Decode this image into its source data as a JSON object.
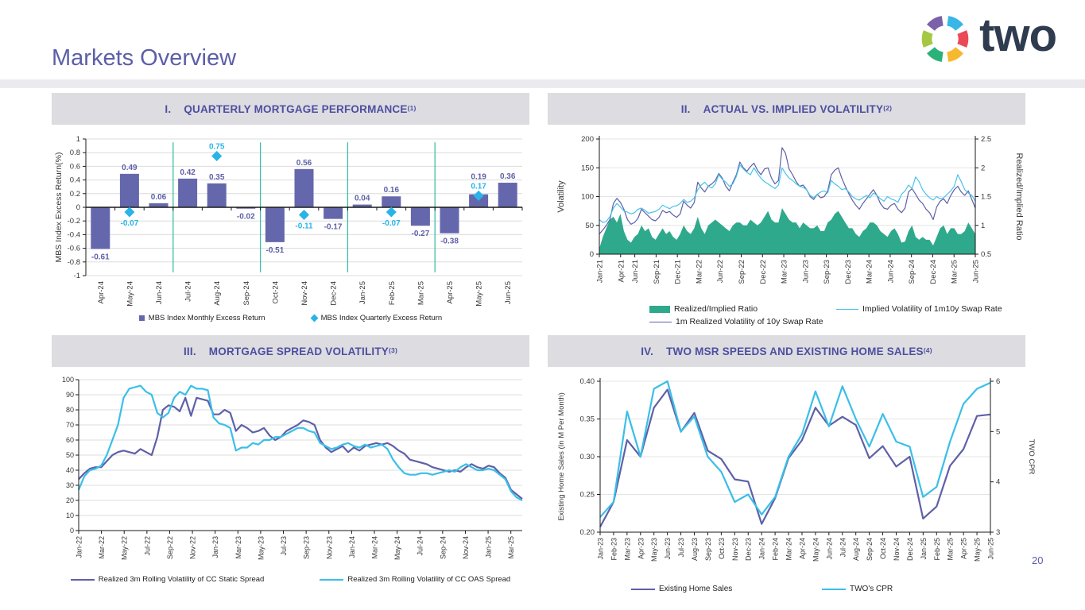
{
  "page": {
    "title": "Markets Overview",
    "page_number": "20",
    "logo": {
      "text": "two",
      "segment_colors": [
        "#7B61A9",
        "#38B6E8",
        "#EC4956",
        "#F5B82E",
        "#2BB279",
        "#A4C844"
      ]
    }
  },
  "colors": {
    "purple_series": "#5E60A8",
    "bar_fill": "#6567AC",
    "cyan_series": "#3ABFE8",
    "implied_cyan": "#49C3EA",
    "diamond_cyan": "#29B4E8",
    "green_area": "#2FA98B",
    "separator_teal": "#3EBEA8",
    "header_bg": "#DCDCE1",
    "header_text": "#4E4EA0",
    "grid": "#DCDCDC",
    "axis": "#1A1A1A",
    "tick_text": "#383838"
  },
  "panels": [
    {
      "numeral": "I.",
      "title": "QUARTERLY MORTGAGE PERFORMANCE",
      "footnote": "(1)"
    },
    {
      "numeral": "II.",
      "title": "ACTUAL VS. IMPLIED VOLATILITY",
      "footnote": "(2)"
    },
    {
      "numeral": "III.",
      "title": "MORTGAGE SPREAD VOLATILITY",
      "footnote": "(3)"
    },
    {
      "numeral": "IV.",
      "title": "TWO MSR SPEEDS AND EXISTING HOME SALES",
      "footnote": "(4)"
    }
  ],
  "chart_data": [
    {
      "type": "bar",
      "title": "Quarterly Mortgage Performance",
      "ylabel": "MBS Index  Excess Return(%)",
      "ylim": [
        -1,
        1
      ],
      "y_ticks": [
        "1",
        "0.8",
        "0.6",
        "0.4",
        "0.2",
        "0",
        "-0.2",
        "-0.4",
        "-0.6",
        "-0.8",
        "-1"
      ],
      "categories": [
        "Apr-24",
        "May-24",
        "Jun-24",
        "Jul-24",
        "Aug-24",
        "Sep-24",
        "Oct-24",
        "Nov-24",
        "Dec-24",
        "Jan-25",
        "Feb-25",
        "Mar-25",
        "Apr-25",
        "May-25",
        "Jun-25"
      ],
      "bar_series": {
        "name": "MBS Index Monthly Excess Return",
        "color": "#6567AC",
        "values": [
          -0.61,
          0.49,
          0.06,
          0.42,
          0.35,
          -0.02,
          -0.51,
          0.56,
          -0.17,
          0.04,
          0.16,
          -0.27,
          -0.38,
          0.19,
          0.36
        ],
        "labels": [
          "-0.61",
          "0.49",
          "0.06",
          "0.42",
          "0.35",
          "-0.02",
          "-0.51",
          "0.56",
          "-0.17",
          "0.04",
          "0.16",
          "-0.27",
          "-0.38",
          "0.19",
          "0.36"
        ]
      },
      "diamond_series": {
        "name": "MBS Index Quarterly Excess Return",
        "color": "#29B4E8",
        "points": [
          {
            "category": "May-24",
            "value": -0.07,
            "label": "-0.07"
          },
          {
            "category": "Aug-24",
            "value": 0.75,
            "label": "0.75"
          },
          {
            "category": "Nov-24",
            "value": -0.11,
            "label": "-0.11"
          },
          {
            "category": "Feb-25",
            "value": -0.07,
            "label": "-0.07"
          },
          {
            "category": "May-25",
            "value": 0.17,
            "label": "0.17"
          }
        ]
      },
      "quarter_separators_after": [
        "Jun-24",
        "Sep-24",
        "Dec-24",
        "Mar-25"
      ],
      "legend": [
        "MBS Index Monthly Excess Return",
        "MBS Index Quarterly Excess Return"
      ]
    },
    {
      "type": "line-area-dual-axis",
      "title": "Actual vs. Implied Volatility",
      "left_axis": {
        "label": "Volatility",
        "range": [
          0,
          200
        ],
        "ticks": [
          "0",
          "50",
          "100",
          "150",
          "200"
        ]
      },
      "right_axis": {
        "label": "Realized/Implied Ratio",
        "range": [
          0.5,
          2.5
        ],
        "ticks": [
          "0.5",
          "1",
          "1.5",
          "2",
          "2.5"
        ]
      },
      "x_months_total": 54,
      "x_tick_labels": [
        "Jan-21",
        "Apr-21",
        "Jun-21",
        "Sep-21",
        "Dec-21",
        "Mar-22",
        "Jun-22",
        "Sep-22",
        "Dec-22",
        "Mar-23",
        "Jun-23",
        "Sep-23",
        "Dec-23",
        "Mar-24",
        "Jun-24",
        "Sep-24",
        "Dec-24",
        "Mar-25",
        "Jun-25"
      ],
      "x_tick_pos": [
        0,
        3,
        5,
        8,
        11,
        14,
        17,
        20,
        23,
        26,
        29,
        32,
        35,
        38,
        41,
        44,
        47,
        50,
        53
      ],
      "series": [
        {
          "name": "Realized/Implied Ratio",
          "style": "area",
          "axis": "right",
          "color": "#2FA98B",
          "values": [
            0.6,
            0.8,
            0.95,
            1.1,
            1.15,
            1.05,
            1.2,
            0.9,
            0.75,
            0.7,
            0.8,
            0.85,
            1.0,
            0.9,
            0.95,
            0.8,
            0.75,
            0.85,
            0.95,
            0.85,
            0.9,
            0.8,
            0.75,
            0.85,
            1.0,
            0.9,
            0.85,
            0.95,
            1.15,
            0.95,
            0.85,
            1.0,
            1.05,
            1.1,
            1.05,
            1.0,
            0.95,
            0.9,
            1.0,
            1.05,
            1.05,
            1.0,
            1.0,
            1.1,
            1.05,
            1.0,
            1.05,
            1.15,
            1.25,
            1.1,
            1.05,
            1.05,
            1.3,
            1.2,
            1.1,
            1.05,
            1.05,
            0.95,
            1.05,
            1.0,
            0.95,
            0.95,
            1.0,
            0.9,
            0.9,
            1.05,
            1.1,
            1.2,
            1.25,
            1.15,
            1.05,
            0.95,
            0.95,
            0.85,
            0.8,
            0.9,
            0.95,
            1.05,
            1.05,
            1.0,
            0.9,
            0.85,
            0.8,
            0.9,
            0.95,
            0.85,
            0.7,
            0.72,
            0.9,
            1.0,
            0.8,
            0.75,
            0.8,
            0.75,
            0.75,
            0.65,
            0.8,
            0.95,
            1.0,
            0.85,
            0.95,
            0.95,
            0.85,
            0.85,
            0.9,
            1.05,
            0.95,
            0.85
          ]
        },
        {
          "name": "1m Realized Volatility of 10y Swap Rate",
          "style": "line",
          "axis": "left",
          "color": "#5E60A8",
          "values": [
            35,
            42,
            50,
            60,
            88,
            97,
            90,
            78,
            60,
            52,
            55,
            62,
            78,
            72,
            66,
            60,
            58,
            64,
            76,
            72,
            74,
            68,
            64,
            70,
            92,
            85,
            80,
            90,
            125,
            115,
            108,
            118,
            122,
            128,
            140,
            132,
            118,
            110,
            125,
            138,
            160,
            150,
            144,
            152,
            158,
            146,
            138,
            148,
            150,
            132,
            122,
            128,
            185,
            175,
            148,
            138,
            126,
            118,
            120,
            112,
            100,
            95,
            104,
            98,
            100,
            110,
            138,
            146,
            150,
            132,
            118,
            105,
            94,
            85,
            78,
            88,
            96,
            104,
            112,
            102,
            88,
            80,
            78,
            85,
            88,
            78,
            72,
            80,
            108,
            114,
            104,
            94,
            88,
            78,
            72,
            60,
            82,
            92,
            96,
            88,
            102,
            112,
            118,
            108,
            102,
            110,
            95,
            80
          ]
        },
        {
          "name": "Implied Volatility of 1m10y Swap Rate",
          "style": "line",
          "axis": "left",
          "color": "#49C3EA",
          "values": [
            60,
            55,
            57,
            65,
            80,
            88,
            82,
            75,
            73,
            70,
            72,
            78,
            80,
            76,
            71,
            73,
            74,
            78,
            85,
            82,
            79,
            83,
            84,
            88,
            95,
            90,
            92,
            98,
            112,
            120,
            125,
            118,
            115,
            122,
            138,
            130,
            125,
            118,
            122,
            135,
            155,
            148,
            142,
            138,
            150,
            140,
            132,
            126,
            122,
            118,
            114,
            120,
            150,
            140,
            132,
            128,
            122,
            118,
            116,
            112,
            102,
            98,
            104,
            108,
            110,
            106,
            128,
            122,
            118,
            112,
            114,
            108,
            100,
            96,
            94,
            98,
            102,
            98,
            106,
            102,
            96,
            92,
            100,
            96,
            94,
            90,
            104,
            110,
            120,
            114,
            134,
            126,
            112,
            104,
            98,
            94,
            100,
            96,
            98,
            104,
            110,
            118,
            138,
            126,
            112,
            106,
            102,
            92
          ]
        }
      ]
    },
    {
      "type": "line",
      "title": "Mortgage Spread Volatility",
      "y_axis": {
        "range": [
          0,
          100
        ],
        "ticks": [
          "0",
          "10",
          "20",
          "30",
          "40",
          "50",
          "60",
          "70",
          "80",
          "90",
          "100"
        ]
      },
      "x_months_total": 40,
      "x_tick_labels": [
        "Jan-22",
        "Mar-22",
        "May-22",
        "Jul-22",
        "Sep-22",
        "Nov-22",
        "Jan-23",
        "Mar-23",
        "May-23",
        "Jul-23",
        "Sep-23",
        "Nov-23",
        "Jan-24",
        "Mar-24",
        "May-24",
        "Jul-24",
        "Sep-24",
        "Nov-24",
        "Jan-25",
        "Mar-25"
      ],
      "x_tick_pos": [
        0,
        2,
        4,
        6,
        8,
        10,
        12,
        14,
        16,
        18,
        20,
        22,
        24,
        26,
        28,
        30,
        32,
        34,
        36,
        38
      ],
      "series": [
        {
          "name": "Realized 3m Rolling Volatility of CC Static Spread",
          "color": "#5E60A8",
          "values": [
            34,
            38,
            41,
            42,
            42,
            46,
            50,
            52,
            53,
            52,
            51,
            54,
            52,
            50,
            62,
            80,
            83,
            82,
            79,
            88,
            76,
            88,
            87,
            86,
            77,
            77,
            80,
            78,
            66,
            70,
            68,
            65,
            66,
            68,
            63,
            60,
            62,
            66,
            68,
            70,
            73,
            72,
            70,
            60,
            55,
            52,
            54,
            56,
            52,
            55,
            53,
            56,
            57,
            58,
            57,
            58,
            56,
            53,
            51,
            47,
            46,
            45,
            44,
            42,
            41,
            40,
            39,
            40,
            39,
            42,
            44,
            42,
            41,
            43,
            42,
            38,
            35,
            27,
            24,
            21
          ]
        },
        {
          "name": "Realized 3m Rolling Volatility of CC OAS Spread",
          "color": "#3ABFE8",
          "values": [
            27,
            36,
            40,
            41,
            43,
            50,
            60,
            70,
            88,
            94,
            95,
            96,
            92,
            90,
            78,
            75,
            78,
            88,
            92,
            90,
            96,
            94,
            94,
            93,
            75,
            71,
            70,
            68,
            53,
            55,
            55,
            58,
            57,
            60,
            60,
            62,
            62,
            64,
            66,
            68,
            68,
            66,
            65,
            58,
            56,
            54,
            55,
            57,
            58,
            56,
            55,
            57,
            55,
            56,
            57,
            54,
            47,
            42,
            38,
            37,
            37,
            38,
            38,
            37,
            38,
            39,
            40,
            39,
            42,
            44,
            42,
            40,
            40,
            41,
            40,
            37,
            34,
            26,
            22,
            20
          ]
        }
      ]
    },
    {
      "type": "line-dual-axis",
      "title": "TWO MSR Speeds and Existing Home Sales",
      "left_axis": {
        "label": "Existing Home Sales (In M Per Month)",
        "range": [
          0.2,
          0.4
        ],
        "ticks": [
          "0.20",
          "0.25",
          "0.30",
          "0.35",
          "0.40"
        ]
      },
      "right_axis": {
        "label": "TWO CPR",
        "range": [
          3,
          6
        ],
        "ticks": [
          "3",
          "4",
          "5",
          "6"
        ]
      },
      "categories": [
        "Jan-23",
        "Feb-23",
        "Mar-23",
        "Apr-23",
        "May-23",
        "Jun-23",
        "Jul-23",
        "Aug-23",
        "Sep-23",
        "Oct-23",
        "Nov-23",
        "Dec-23",
        "Jan-24",
        "Feb-24",
        "Mar-24",
        "Apr-24",
        "May-24",
        "Jun-24",
        "Jul-24",
        "Aug-24",
        "Sep-24",
        "Oct-24",
        "Nov-24",
        "Dec-24",
        "Jan-25",
        "Feb-25",
        "Mar-25",
        "Apr-25",
        "May-25",
        "Jun-25"
      ],
      "series": [
        {
          "name": "Existing Home Sales",
          "axis": "left",
          "color": "#5E60A8",
          "values": [
            0.207,
            0.24,
            0.322,
            0.3,
            0.365,
            0.389,
            0.333,
            0.358,
            0.308,
            0.297,
            0.27,
            0.267,
            0.211,
            0.245,
            0.298,
            0.322,
            0.365,
            0.341,
            0.353,
            0.342,
            0.298,
            0.314,
            0.287,
            0.3,
            0.218,
            0.234,
            0.288,
            0.31,
            0.354,
            0.356
          ]
        },
        {
          "name": "TWO's CPR",
          "axis": "right",
          "color": "#3ABFE8",
          "values": [
            3.3,
            3.6,
            5.4,
            4.5,
            5.85,
            6.0,
            5.0,
            5.3,
            4.5,
            4.2,
            3.6,
            3.75,
            3.35,
            3.7,
            4.5,
            4.95,
            5.8,
            5.1,
            5.9,
            5.25,
            4.7,
            5.35,
            4.8,
            4.7,
            3.7,
            3.9,
            4.8,
            5.55,
            5.85,
            5.97
          ]
        }
      ]
    }
  ]
}
